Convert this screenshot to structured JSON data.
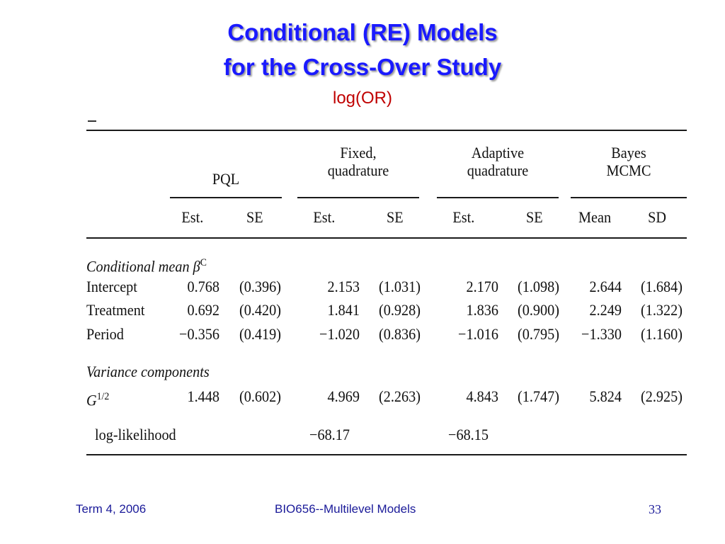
{
  "slide": {
    "title_line1": "Conditional (RE) Models",
    "title_line2": "for the Cross-Over Study",
    "subtitle": "log(OR)"
  },
  "table": {
    "groups": [
      "PQL",
      "Fixed,\nquadrature",
      "Adaptive\nquadrature",
      "Bayes\nMCMC"
    ],
    "subheaders": [
      "Est.",
      "SE",
      "Est.",
      "SE",
      "Est.",
      "SE",
      "Mean",
      "SD"
    ],
    "section_mean": "Conditional mean β",
    "section_mean_sup": "C",
    "rows": [
      {
        "label": "Intercept",
        "values": [
          "0.768",
          "(0.396)",
          "2.153",
          "(1.031)",
          "2.170",
          "(1.098)",
          "2.644",
          "(1.684)"
        ]
      },
      {
        "label": "Treatment",
        "values": [
          "0.692",
          "(0.420)",
          "1.841",
          "(0.928)",
          "1.836",
          "(0.900)",
          "2.249",
          "(1.322)"
        ]
      },
      {
        "label": "Period",
        "values": [
          "−0.356",
          "(0.419)",
          "−1.020",
          "(0.836)",
          "−1.016",
          "(0.795)",
          "−1.330",
          "(1.160)"
        ]
      }
    ],
    "section_var": "Variance components",
    "g_label": "G",
    "g_sup": "1/2",
    "g_values": [
      "1.448",
      "(0.602)",
      "4.969",
      "(2.263)",
      "4.843",
      "(1.747)",
      "5.824",
      "(2.925)"
    ],
    "loglik_label": "log-likelihood",
    "loglik_values": [
      "−68.17",
      "−68.15"
    ]
  },
  "footer": {
    "left": "Term 4, 2006",
    "center": "BIO656--Multilevel Models",
    "page": "33"
  }
}
